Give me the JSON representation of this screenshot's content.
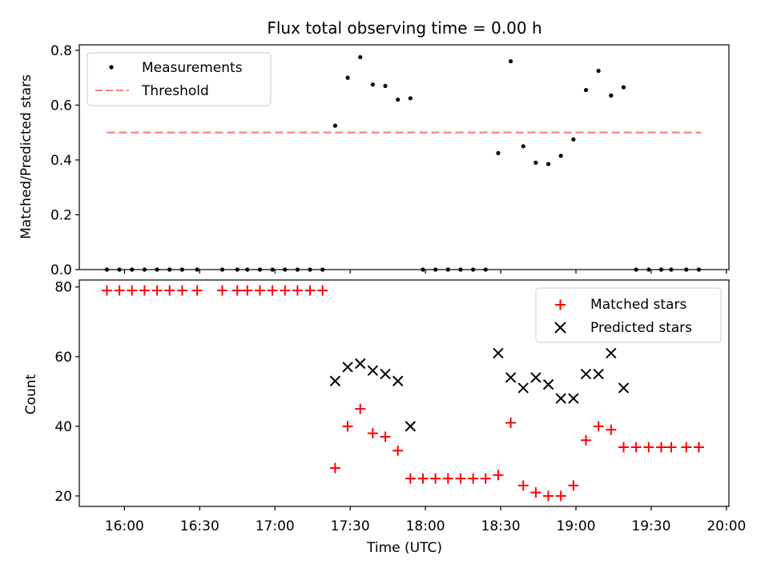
{
  "chart_data": [
    {
      "type": "scatter",
      "title": "Flux total observing time = 0.00 h",
      "ylabel": "Matched/Predicted stars",
      "ylim": [
        0,
        0.82
      ],
      "yticks": [
        "0.0",
        "0.2",
        "0.4",
        "0.6",
        "0.8"
      ],
      "legend_position": "upper-left",
      "series": [
        {
          "name": "Measurements",
          "marker": "dot",
          "color": "#000000",
          "points": [
            [
              "15:53",
              0.0
            ],
            [
              "15:58",
              0.0
            ],
            [
              "16:03",
              0.0
            ],
            [
              "16:08",
              0.0
            ],
            [
              "16:13",
              0.0
            ],
            [
              "16:18",
              0.0
            ],
            [
              "16:23",
              0.0
            ],
            [
              "16:29",
              0.0
            ],
            [
              "16:39",
              0.0
            ],
            [
              "16:45",
              0.0
            ],
            [
              "16:49",
              0.0
            ],
            [
              "16:54",
              0.0
            ],
            [
              "16:59",
              0.0
            ],
            [
              "17:04",
              0.0
            ],
            [
              "17:09",
              0.0
            ],
            [
              "17:14",
              0.0
            ],
            [
              "17:19",
              0.0
            ],
            [
              "17:24",
              0.525
            ],
            [
              "17:29",
              0.7
            ],
            [
              "17:34",
              0.775
            ],
            [
              "17:39",
              0.675
            ],
            [
              "17:44",
              0.67
            ],
            [
              "17:49",
              0.62
            ],
            [
              "17:54",
              0.625
            ],
            [
              "17:59",
              0.0
            ],
            [
              "18:04",
              0.0
            ],
            [
              "18:09",
              0.0
            ],
            [
              "18:14",
              0.0
            ],
            [
              "18:19",
              0.0
            ],
            [
              "18:24",
              0.0
            ],
            [
              "18:29",
              0.425
            ],
            [
              "18:34",
              0.76
            ],
            [
              "18:39",
              0.45
            ],
            [
              "18:44",
              0.39
            ],
            [
              "18:49",
              0.385
            ],
            [
              "18:54",
              0.415
            ],
            [
              "18:59",
              0.475
            ],
            [
              "19:04",
              0.655
            ],
            [
              "19:09",
              0.725
            ],
            [
              "19:14",
              0.635
            ],
            [
              "19:19",
              0.665
            ],
            [
              "19:24",
              0.0
            ],
            [
              "19:29",
              0.0
            ],
            [
              "19:34",
              0.0
            ],
            [
              "19:38",
              0.0
            ],
            [
              "19:44",
              0.0
            ],
            [
              "19:49",
              0.0
            ]
          ]
        },
        {
          "name": "Threshold",
          "type": "line",
          "style": "dashed",
          "color": "#ff7f7f",
          "points": [
            [
              "15:53",
              0.5
            ],
            [
              "19:50",
              0.5
            ]
          ]
        }
      ]
    },
    {
      "type": "scatter",
      "xlabel": "Time (UTC)",
      "ylabel": "Count",
      "ylim": [
        17,
        82
      ],
      "yticks": [
        "20",
        "40",
        "60",
        "80"
      ],
      "xticks": [
        "16:00",
        "16:30",
        "17:00",
        "17:30",
        "18:00",
        "18:30",
        "19:00",
        "19:30",
        "20:00"
      ],
      "xlim": [
        "15:42",
        "20:01"
      ],
      "legend_position": "upper-right",
      "series": [
        {
          "name": "Matched stars",
          "marker": "plus",
          "color": "#ff0000",
          "points": [
            [
              "15:53",
              79
            ],
            [
              "15:58",
              79
            ],
            [
              "16:03",
              79
            ],
            [
              "16:08",
              79
            ],
            [
              "16:13",
              79
            ],
            [
              "16:18",
              79
            ],
            [
              "16:23",
              79
            ],
            [
              "16:29",
              79
            ],
            [
              "16:39",
              79
            ],
            [
              "16:45",
              79
            ],
            [
              "16:49",
              79
            ],
            [
              "16:54",
              79
            ],
            [
              "16:59",
              79
            ],
            [
              "17:04",
              79
            ],
            [
              "17:09",
              79
            ],
            [
              "17:14",
              79
            ],
            [
              "17:19",
              79
            ],
            [
              "17:24",
              28
            ],
            [
              "17:29",
              40
            ],
            [
              "17:34",
              45
            ],
            [
              "17:39",
              38
            ],
            [
              "17:44",
              37
            ],
            [
              "17:49",
              33
            ],
            [
              "17:54",
              25
            ],
            [
              "17:59",
              25
            ],
            [
              "18:04",
              25
            ],
            [
              "18:09",
              25
            ],
            [
              "18:14",
              25
            ],
            [
              "18:19",
              25
            ],
            [
              "18:24",
              25
            ],
            [
              "18:29",
              26
            ],
            [
              "18:34",
              41
            ],
            [
              "18:39",
              23
            ],
            [
              "18:44",
              21
            ],
            [
              "18:49",
              20
            ],
            [
              "18:54",
              20
            ],
            [
              "18:59",
              23
            ],
            [
              "19:04",
              36
            ],
            [
              "19:09",
              40
            ],
            [
              "19:14",
              39
            ],
            [
              "19:19",
              34
            ],
            [
              "19:24",
              34
            ],
            [
              "19:29",
              34
            ],
            [
              "19:34",
              34
            ],
            [
              "19:38",
              34
            ],
            [
              "19:44",
              34
            ],
            [
              "19:49",
              34
            ]
          ]
        },
        {
          "name": "Predicted stars",
          "marker": "x",
          "color": "#000000",
          "points": [
            [
              "17:24",
              53
            ],
            [
              "17:29",
              57
            ],
            [
              "17:34",
              58
            ],
            [
              "17:39",
              56
            ],
            [
              "17:44",
              55
            ],
            [
              "17:49",
              53
            ],
            [
              "17:54",
              40
            ],
            [
              "18:29",
              61
            ],
            [
              "18:34",
              54
            ],
            [
              "18:39",
              51
            ],
            [
              "18:44",
              54
            ],
            [
              "18:49",
              52
            ],
            [
              "18:54",
              48
            ],
            [
              "18:59",
              48
            ],
            [
              "19:04",
              55
            ],
            [
              "19:09",
              55
            ],
            [
              "19:14",
              61
            ],
            [
              "19:19",
              51
            ]
          ]
        }
      ]
    }
  ]
}
